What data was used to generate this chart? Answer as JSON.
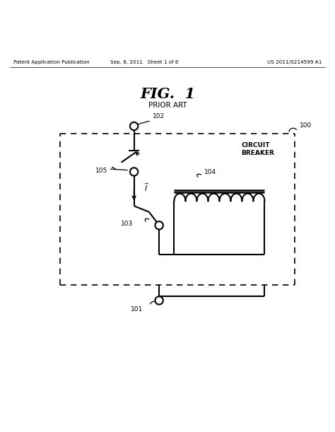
{
  "bg_color": "#ffffff",
  "line_color": "#000000",
  "fig_title": "FIG.  1",
  "fig_subtitle": "PRIOR ART",
  "header_left": "Patent Application Publication",
  "header_mid": "Sep. 8, 2011   Sheet 1 of 6",
  "header_right": "US 2011/0214599 A1",
  "label_100": "100",
  "label_101": "101",
  "label_102": "102",
  "label_103": "103",
  "label_104": "104",
  "label_105": "105",
  "label_cb": "CIRCUIT\nBREAKER",
  "lw": 1.5,
  "node_r": 0.012
}
